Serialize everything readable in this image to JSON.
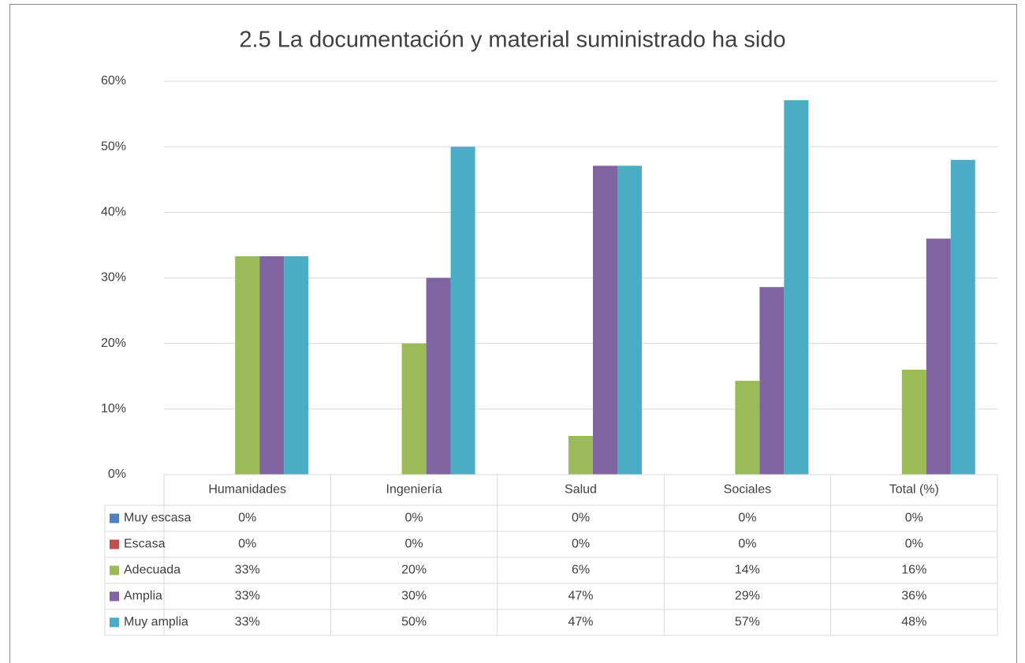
{
  "chart_data": {
    "type": "bar",
    "title": "2.5 La documentación y material suministrado ha sido",
    "categories": [
      "Humanidades",
      "Ingeniería",
      "Salud",
      "Sociales",
      "Total (%)"
    ],
    "series": [
      {
        "name": "Muy escasa",
        "color": "#4f81bd",
        "values": [
          0,
          0,
          0,
          0,
          0
        ],
        "value_labels": [
          "0%",
          "0%",
          "0%",
          "0%",
          "0%"
        ]
      },
      {
        "name": "Escasa",
        "color": "#c0504d",
        "values": [
          0,
          0,
          0,
          0,
          0
        ],
        "value_labels": [
          "0%",
          "0%",
          "0%",
          "0%",
          "0%"
        ]
      },
      {
        "name": "Adecuada",
        "color": "#9bbb59",
        "values": [
          33.3,
          20,
          5.9,
          14.3,
          16
        ],
        "value_labels": [
          "33%",
          "20%",
          "6%",
          "14%",
          "16%"
        ]
      },
      {
        "name": "Amplia",
        "color": "#8064a2",
        "values": [
          33.3,
          30,
          47.1,
          28.6,
          36
        ],
        "value_labels": [
          "33%",
          "30%",
          "47%",
          "29%",
          "36%"
        ]
      },
      {
        "name": "Muy amplia",
        "color": "#4bacc6",
        "values": [
          33.3,
          50,
          47.1,
          57.1,
          48
        ],
        "value_labels": [
          "33%",
          "50%",
          "47%",
          "57%",
          "48%"
        ]
      }
    ],
    "ylim": [
      0,
      60
    ],
    "yticks": [
      {
        "value": 0,
        "label": "0%"
      },
      {
        "value": 10,
        "label": "10%"
      },
      {
        "value": 20,
        "label": "20%"
      },
      {
        "value": 30,
        "label": "30%"
      },
      {
        "value": 40,
        "label": "40%"
      },
      {
        "value": 50,
        "label": "50%"
      },
      {
        "value": 60,
        "label": "60%"
      }
    ],
    "grid": true,
    "legend": "table"
  }
}
